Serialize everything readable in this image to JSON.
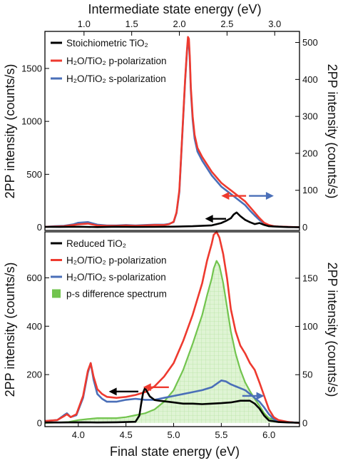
{
  "colors": {
    "black": "#000000",
    "red": "#ee3a2f",
    "blue": "#4a6fb8",
    "green": "#72c44e",
    "green_fill": "#cfeec0"
  },
  "chart_data": [
    {
      "type": "line",
      "panel": "top",
      "xlabel_top": "Intermediate state energy (eV)",
      "ylabel_left": "2PP intensity (counts/s)",
      "ylabel_right": "2PP intensity (counts/s)",
      "xlim": [
        3.65,
        6.32
      ],
      "top_axis_offset_eV": 3.06,
      "top_ticks": [
        "1.0",
        "1.5",
        "2.0",
        "2.5",
        "3.0"
      ],
      "ylim_left": [
        -30,
        1850
      ],
      "yticks_left": [
        "0",
        "500",
        "1000",
        "1500"
      ],
      "ylim_right": [
        -8.6,
        530
      ],
      "yticks_right": [
        "0",
        "100",
        "200",
        "300",
        "400",
        "500"
      ],
      "legend": {
        "position": "top-left",
        "entries": [
          {
            "label": "Stoichiometric TiO₂",
            "color": "#000000"
          },
          {
            "label": "H₂O/TiO₂  p-polarization",
            "color": "#ee3a2f"
          },
          {
            "label": "H₂O/TiO₂  s-polarization",
            "color": "#4a6fb8"
          }
        ]
      },
      "annotations": [
        {
          "type": "arrow",
          "direction": "left",
          "color": "#000000",
          "axis": "left",
          "x_from": 5.55,
          "x_to": 5.33,
          "y": 80
        },
        {
          "type": "arrow",
          "direction": "left",
          "color": "#ee3a2f",
          "axis": "right",
          "x_from": 5.76,
          "x_to": 5.5,
          "y": 85
        },
        {
          "type": "arrow",
          "direction": "right",
          "color": "#4a6fb8",
          "axis": "right",
          "x_from": 5.79,
          "x_to": 6.05,
          "y": 85
        }
      ],
      "series": [
        {
          "name": "Stoichiometric TiO₂",
          "axis": "left",
          "color": "#000000",
          "x": [
            3.65,
            3.8,
            4.0,
            4.2,
            4.4,
            4.6,
            4.8,
            5.0,
            5.2,
            5.4,
            5.5,
            5.55,
            5.6,
            5.63,
            5.66,
            5.7,
            5.75,
            5.8,
            5.85,
            5.9,
            5.95,
            6.0,
            6.1,
            6.2,
            6.32
          ],
          "y": [
            4,
            3,
            5,
            2,
            5,
            3,
            4,
            6,
            10,
            18,
            40,
            60,
            85,
            120,
            140,
            105,
            70,
            48,
            30,
            40,
            22,
            10,
            5,
            2,
            0
          ]
        },
        {
          "name": "H₂O/TiO₂  p-polarization",
          "axis": "right",
          "color": "#ee3a2f",
          "x": [
            3.65,
            3.75,
            3.85,
            3.95,
            4.0,
            4.1,
            4.2,
            4.3,
            4.4,
            4.5,
            4.6,
            4.7,
            4.8,
            4.9,
            4.95,
            5.0,
            5.03,
            5.06,
            5.08,
            5.1,
            5.12,
            5.14,
            5.15,
            5.16,
            5.17,
            5.18,
            5.2,
            5.22,
            5.25,
            5.3,
            5.35,
            5.4,
            5.45,
            5.5,
            5.55,
            5.6,
            5.65,
            5.7,
            5.75,
            5.8,
            5.85,
            5.9,
            5.95,
            6.0,
            6.05,
            6.1,
            6.2,
            6.32
          ],
          "y": [
            1,
            2,
            3,
            6,
            8,
            10,
            5,
            4,
            4,
            5,
            4,
            5,
            6,
            6,
            8,
            15,
            40,
            100,
            200,
            300,
            400,
            480,
            515,
            510,
            460,
            380,
            300,
            250,
            215,
            190,
            170,
            150,
            135,
            120,
            110,
            100,
            90,
            80,
            70,
            55,
            40,
            25,
            12,
            6,
            3,
            2,
            1,
            0
          ]
        },
        {
          "name": "H₂O/TiO₂  s-polarization",
          "axis": "right",
          "color": "#4a6fb8",
          "x": [
            3.65,
            3.75,
            3.85,
            3.95,
            4.0,
            4.1,
            4.2,
            4.3,
            4.4,
            4.5,
            4.6,
            4.7,
            4.8,
            4.9,
            4.95,
            5.0,
            5.03,
            5.06,
            5.08,
            5.1,
            5.12,
            5.14,
            5.15,
            5.16,
            5.17,
            5.18,
            5.2,
            5.22,
            5.25,
            5.3,
            5.35,
            5.4,
            5.45,
            5.5,
            5.55,
            5.6,
            5.65,
            5.7,
            5.75,
            5.8,
            5.85,
            5.9,
            5.95,
            6.0,
            6.05,
            6.1,
            6.2,
            6.32
          ],
          "y": [
            1,
            3,
            4,
            8,
            12,
            14,
            7,
            5,
            5,
            6,
            5,
            6,
            7,
            7,
            9,
            14,
            38,
            95,
            195,
            295,
            395,
            475,
            505,
            500,
            450,
            370,
            290,
            240,
            205,
            180,
            160,
            140,
            125,
            110,
            100,
            90,
            80,
            70,
            60,
            45,
            32,
            20,
            10,
            5,
            3,
            2,
            1,
            0
          ]
        }
      ]
    },
    {
      "type": "area",
      "panel": "bottom",
      "xlabel": "Final state energy (eV)",
      "ylabel_left": "2PP intensity (counts/s)",
      "ylabel_right": "2PP intensity (counts/s)",
      "xlim": [
        3.65,
        6.32
      ],
      "xticks": [
        "4.0",
        "4.5",
        "5.0",
        "5.5",
        "6.0"
      ],
      "ylim_left": [
        -15,
        790
      ],
      "yticks_left": [
        "0",
        "200",
        "400",
        "600"
      ],
      "ylim_right": [
        -3.8,
        198
      ],
      "yticks_right": [
        "0",
        "50",
        "100",
        "150"
      ],
      "legend": {
        "position": "top-left",
        "entries": [
          {
            "label": "Reduced TiO₂",
            "color": "#000000",
            "kind": "line"
          },
          {
            "label": "H₂O/TiO₂  p-polarization",
            "color": "#ee3a2f",
            "kind": "line"
          },
          {
            "label": "H₂O/TiO₂  s-polarization",
            "color": "#4a6fb8",
            "kind": "line"
          },
          {
            "label": "p-s difference spectrum",
            "color": "#72c44e",
            "kind": "patch"
          }
        ]
      },
      "annotations": [
        {
          "type": "arrow",
          "direction": "left",
          "color": "#000000",
          "axis": "left",
          "x_from": 4.63,
          "x_to": 4.32,
          "y": 130
        },
        {
          "type": "arrow",
          "direction": "left",
          "color": "#ee3a2f",
          "axis": "right",
          "x_from": 4.95,
          "x_to": 4.68,
          "y": 37
        },
        {
          "type": "arrow",
          "direction": "right",
          "color": "#4a6fb8",
          "axis": "right",
          "x_from": 5.72,
          "x_to": 5.95,
          "y": 28
        }
      ],
      "series": [
        {
          "name": "Reduced TiO₂",
          "axis": "left",
          "color": "#000000",
          "x": [
            3.65,
            3.8,
            4.0,
            4.2,
            4.4,
            4.6,
            4.64,
            4.66,
            4.68,
            4.7,
            4.72,
            4.75,
            4.8,
            4.85,
            4.9,
            5.0,
            5.1,
            5.2,
            5.3,
            5.4,
            5.5,
            5.6,
            5.7,
            5.8,
            5.85,
            5.9,
            5.95,
            6.0,
            6.1,
            6.2,
            6.32
          ],
          "y": [
            2,
            2,
            3,
            2,
            3,
            5,
            30,
            80,
            125,
            145,
            130,
            110,
            95,
            92,
            90,
            85,
            80,
            80,
            78,
            80,
            82,
            85,
            92,
            92,
            80,
            60,
            30,
            10,
            4,
            2,
            1
          ]
        },
        {
          "name": "H₂O/TiO₂  p-polarization",
          "axis": "right",
          "color": "#ee3a2f",
          "x": [
            3.65,
            3.78,
            3.85,
            3.88,
            3.92,
            3.98,
            4.05,
            4.1,
            4.13,
            4.16,
            4.2,
            4.25,
            4.3,
            4.4,
            4.5,
            4.6,
            4.7,
            4.8,
            4.9,
            5.0,
            5.1,
            5.2,
            5.3,
            5.35,
            5.4,
            5.42,
            5.45,
            5.48,
            5.52,
            5.56,
            5.6,
            5.65,
            5.7,
            5.75,
            5.8,
            5.85,
            5.9,
            5.95,
            6.0,
            6.05,
            6.1,
            6.2,
            6.32
          ],
          "y": [
            2,
            3,
            7,
            9,
            6,
            9,
            28,
            54,
            62,
            48,
            35,
            30,
            27,
            26,
            27,
            29,
            32,
            38,
            48,
            62,
            85,
            112,
            145,
            168,
            186,
            195,
            198,
            192,
            175,
            150,
            118,
            95,
            80,
            72,
            62,
            55,
            42,
            28,
            14,
            6,
            3,
            1,
            0
          ]
        },
        {
          "name": "H₂O/TiO₂  s-polarization",
          "axis": "right",
          "color": "#4a6fb8",
          "x": [
            3.65,
            3.78,
            3.85,
            3.88,
            3.92,
            3.98,
            4.05,
            4.1,
            4.13,
            4.16,
            4.2,
            4.25,
            4.3,
            4.4,
            4.5,
            4.6,
            4.7,
            4.8,
            4.9,
            5.0,
            5.1,
            5.2,
            5.3,
            5.4,
            5.5,
            5.55,
            5.6,
            5.65,
            5.7,
            5.75,
            5.8,
            5.85,
            5.9,
            5.95,
            6.0,
            6.05,
            6.1,
            6.2,
            6.32
          ],
          "y": [
            2,
            3,
            8,
            10,
            6,
            8,
            26,
            52,
            62,
            45,
            30,
            25,
            22,
            22,
            24,
            25,
            24,
            24,
            26,
            28,
            30,
            32,
            34,
            37,
            44,
            43,
            40,
            38,
            36,
            34,
            30,
            26,
            22,
            16,
            9,
            4,
            2,
            1,
            0
          ]
        },
        {
          "name": "p-s difference spectrum",
          "axis": "right",
          "color": "#72c44e",
          "fill": true,
          "x": [
            3.65,
            3.8,
            3.9,
            4.0,
            4.1,
            4.2,
            4.3,
            4.4,
            4.5,
            4.6,
            4.7,
            4.8,
            4.9,
            5.0,
            5.1,
            5.2,
            5.3,
            5.35,
            5.4,
            5.42,
            5.45,
            5.48,
            5.52,
            5.56,
            5.6,
            5.65,
            5.7,
            5.75,
            5.8,
            5.85,
            5.9,
            5.95,
            6.0,
            6.1,
            6.2,
            6.32
          ],
          "y": [
            0,
            0.5,
            1,
            3,
            4,
            5,
            5,
            5,
            6,
            8,
            10,
            14,
            22,
            34,
            55,
            82,
            112,
            132,
            150,
            160,
            168,
            163,
            145,
            120,
            95,
            72,
            55,
            42,
            33,
            25,
            18,
            10,
            5,
            2,
            1,
            0
          ]
        }
      ]
    }
  ]
}
